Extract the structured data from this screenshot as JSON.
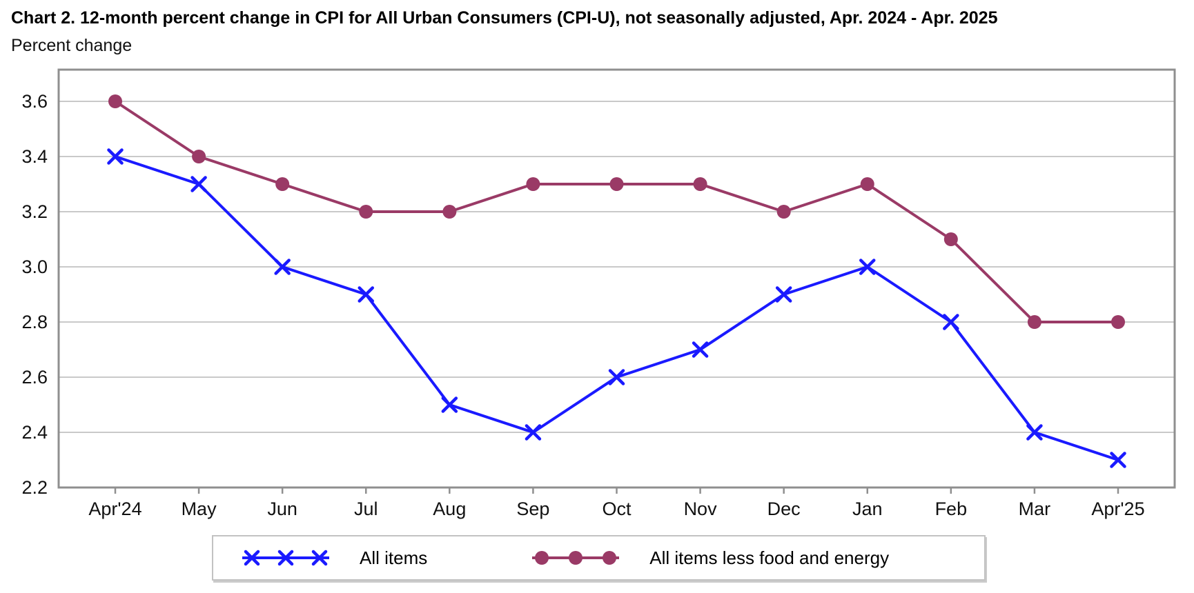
{
  "title": "Chart 2. 12-month percent change in CPI for All Urban Consumers (CPI-U), not seasonally adjusted, Apr. 2024 - Apr. 2025",
  "subtitle": "Percent change",
  "chart_data": {
    "type": "line",
    "title": "Chart 2. 12-month percent change in CPI for All Urban Consumers (CPI-U), not seasonally adjusted, Apr. 2024 - Apr. 2025",
    "ylabel": "Percent change",
    "xlabel": "",
    "categories": [
      "Apr'24",
      "May",
      "Jun",
      "Jul",
      "Aug",
      "Sep",
      "Oct",
      "Nov",
      "Dec",
      "Jan",
      "Feb",
      "Mar",
      "Apr'25"
    ],
    "series": [
      {
        "name": "All items",
        "marker": "x",
        "color": "#1a1aff",
        "values": [
          3.4,
          3.3,
          3.0,
          2.9,
          2.5,
          2.4,
          2.6,
          2.7,
          2.9,
          3.0,
          2.8,
          2.4,
          2.3
        ]
      },
      {
        "name": "All items less food and energy",
        "marker": "circle",
        "color": "#9a3a66",
        "values": [
          3.6,
          3.4,
          3.3,
          3.2,
          3.2,
          3.3,
          3.3,
          3.3,
          3.2,
          3.3,
          3.1,
          2.8,
          2.8
        ]
      }
    ],
    "ylim": [
      2.2,
      3.715
    ],
    "yticks": [
      "2.2",
      "2.4",
      "2.6",
      "2.8",
      "3.0",
      "3.2",
      "3.4",
      "3.6"
    ],
    "grid": "horizontal",
    "legend_position": "bottom",
    "axis_colors": {
      "border": "#8f8f8f",
      "gridline": "#c9c9c9",
      "tick": "#8f8f8f",
      "text": "#111111"
    }
  }
}
